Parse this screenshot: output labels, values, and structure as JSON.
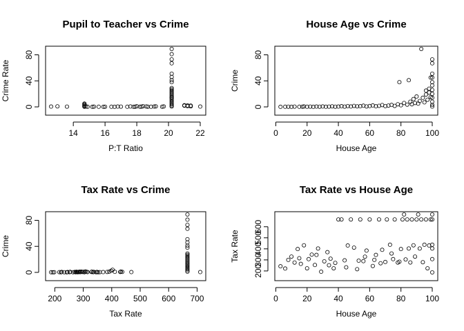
{
  "chart_data": [
    {
      "type": "scatter",
      "title": "Pupil to Teacher vs Crime",
      "xlabel": "P:T Ratio",
      "ylabel": "Crime Rate",
      "xlim": [
        12.6,
        22.0
      ],
      "ylim": [
        0,
        89
      ],
      "xticks": [
        14,
        16,
        18,
        20,
        22
      ],
      "yticks": [
        0,
        40,
        80
      ],
      "points": [
        [
          12.6,
          0.5
        ],
        [
          13.0,
          0.8
        ],
        [
          13.6,
          0.4
        ],
        [
          14.7,
          0.3
        ],
        [
          14.7,
          1.2
        ],
        [
          14.7,
          2.5
        ],
        [
          14.7,
          3.8
        ],
        [
          14.7,
          5.0
        ],
        [
          14.8,
          0.6
        ],
        [
          14.9,
          0.2
        ],
        [
          15.2,
          0.1
        ],
        [
          15.3,
          0.4
        ],
        [
          15.6,
          0.2
        ],
        [
          15.9,
          0.1
        ],
        [
          16.0,
          0.3
        ],
        [
          16.4,
          0.2
        ],
        [
          16.6,
          0.1
        ],
        [
          16.8,
          0.5
        ],
        [
          17.0,
          0.4
        ],
        [
          17.4,
          0.2
        ],
        [
          17.6,
          0.6
        ],
        [
          17.8,
          0.1
        ],
        [
          17.9,
          0.3
        ],
        [
          18.0,
          0.9
        ],
        [
          18.2,
          0.2
        ],
        [
          18.3,
          0.4
        ],
        [
          18.4,
          1.1
        ],
        [
          18.6,
          0.7
        ],
        [
          18.7,
          0.3
        ],
        [
          18.9,
          0.2
        ],
        [
          19.1,
          0.5
        ],
        [
          19.2,
          0.8
        ],
        [
          19.6,
          0.3
        ],
        [
          19.7,
          0.6
        ],
        [
          20.2,
          0.5
        ],
        [
          20.2,
          2
        ],
        [
          20.2,
          4
        ],
        [
          20.2,
          6
        ],
        [
          20.2,
          8
        ],
        [
          20.2,
          10
        ],
        [
          20.2,
          12
        ],
        [
          20.2,
          14
        ],
        [
          20.2,
          15
        ],
        [
          20.2,
          17
        ],
        [
          20.2,
          19
        ],
        [
          20.2,
          21
        ],
        [
          20.2,
          23
        ],
        [
          20.2,
          25
        ],
        [
          20.2,
          27
        ],
        [
          20.2,
          29
        ],
        [
          20.2,
          38
        ],
        [
          20.2,
          41
        ],
        [
          20.2,
          46
        ],
        [
          20.2,
          51
        ],
        [
          20.2,
          67
        ],
        [
          20.2,
          73
        ],
        [
          20.2,
          81
        ],
        [
          20.2,
          89
        ],
        [
          21.0,
          1.8
        ],
        [
          21.0,
          2.5
        ],
        [
          21.2,
          1.0
        ],
        [
          21.2,
          2.2
        ],
        [
          21.4,
          0.8
        ],
        [
          21.4,
          2.0
        ],
        [
          22.0,
          0.5
        ]
      ]
    },
    {
      "type": "scatter",
      "title": "House Age vs Crime",
      "xlabel": "House Age",
      "ylabel": "Crime",
      "xlim": [
        2.9,
        100
      ],
      "ylim": [
        0,
        89
      ],
      "xticks": [
        0,
        20,
        40,
        60,
        80,
        100
      ],
      "yticks": [
        0,
        40,
        80
      ],
      "points": [
        [
          3,
          0.1
        ],
        [
          6,
          0.2
        ],
        [
          8,
          0.3
        ],
        [
          10,
          0.1
        ],
        [
          12,
          0.4
        ],
        [
          15,
          0.2
        ],
        [
          17,
          0.3
        ],
        [
          18,
          0.6
        ],
        [
          20,
          0.2
        ],
        [
          22,
          0.4
        ],
        [
          24,
          0.1
        ],
        [
          26,
          0.5
        ],
        [
          28,
          0.3
        ],
        [
          30,
          0.6
        ],
        [
          32,
          0.2
        ],
        [
          34,
          0.4
        ],
        [
          36,
          0.8
        ],
        [
          38,
          0.3
        ],
        [
          40,
          0.5
        ],
        [
          42,
          1.0
        ],
        [
          44,
          0.4
        ],
        [
          46,
          1.2
        ],
        [
          48,
          0.6
        ],
        [
          50,
          1.5
        ],
        [
          52,
          0.8
        ],
        [
          54,
          1.0
        ],
        [
          56,
          1.8
        ],
        [
          58,
          0.7
        ],
        [
          60,
          1.3
        ],
        [
          62,
          2.2
        ],
        [
          64,
          0.9
        ],
        [
          66,
          1.6
        ],
        [
          68,
          2.8
        ],
        [
          70,
          1.2
        ],
        [
          72,
          2.0
        ],
        [
          74,
          3.0
        ],
        [
          76,
          1.5
        ],
        [
          78,
          4.0
        ],
        [
          79,
          38
        ],
        [
          80,
          2.5
        ],
        [
          82,
          6
        ],
        [
          84,
          3.5
        ],
        [
          85,
          41
        ],
        [
          86,
          8
        ],
        [
          87,
          4
        ],
        [
          88,
          12
        ],
        [
          89,
          6
        ],
        [
          90,
          16
        ],
        [
          91,
          5
        ],
        [
          92,
          9
        ],
        [
          93,
          89
        ],
        [
          94,
          14
        ],
        [
          95,
          7
        ],
        [
          96,
          19
        ],
        [
          96,
          25
        ],
        [
          97,
          11
        ],
        [
          98,
          22
        ],
        [
          98,
          28
        ],
        [
          99,
          15
        ],
        [
          99,
          45
        ],
        [
          100,
          8
        ],
        [
          100,
          14
        ],
        [
          100,
          20
        ],
        [
          100,
          26
        ],
        [
          100,
          33
        ],
        [
          100,
          38
        ],
        [
          100,
          45
        ],
        [
          100,
          51
        ],
        [
          100,
          67
        ],
        [
          100,
          73
        ],
        [
          100,
          0.5
        ],
        [
          100,
          3
        ]
      ]
    },
    {
      "type": "scatter",
      "title": "Tax Rate vs Crime",
      "xlabel": "Tax Rate",
      "ylabel": "Crime",
      "xlim": [
        187,
        711
      ],
      "ylim": [
        0,
        89
      ],
      "xticks": [
        200,
        300,
        400,
        500,
        600,
        700
      ],
      "yticks": [
        0,
        40,
        80
      ],
      "points": [
        [
          187,
          0.2
        ],
        [
          193,
          0.1
        ],
        [
          198,
          0.3
        ],
        [
          216,
          0.4
        ],
        [
          222,
          0.2
        ],
        [
          224,
          0.6
        ],
        [
          233,
          0.3
        ],
        [
          242,
          0.1
        ],
        [
          245,
          0.5
        ],
        [
          252,
          0.4
        ],
        [
          254,
          0.8
        ],
        [
          264,
          0.3
        ],
        [
          270,
          0.6
        ],
        [
          273,
          0.2
        ],
        [
          276,
          0.9
        ],
        [
          277,
          0.4
        ],
        [
          279,
          0.5
        ],
        [
          281,
          0.3
        ],
        [
          284,
          0.7
        ],
        [
          287,
          1.0
        ],
        [
          289,
          0.4
        ],
        [
          293,
          1.2
        ],
        [
          296,
          0.6
        ],
        [
          300,
          0.8
        ],
        [
          304,
          0.3
        ],
        [
          307,
          1.5
        ],
        [
          311,
          0.9
        ],
        [
          315,
          0.5
        ],
        [
          329,
          0.7
        ],
        [
          330,
          1.1
        ],
        [
          335,
          0.4
        ],
        [
          337,
          0.8
        ],
        [
          345,
          0.3
        ],
        [
          348,
          0.6
        ],
        [
          352,
          0.2
        ],
        [
          358,
          0.4
        ],
        [
          370,
          0.5
        ],
        [
          384,
          0.7
        ],
        [
          391,
          1.0
        ],
        [
          398,
          2.5
        ],
        [
          403,
          4.0
        ],
        [
          411,
          0.9
        ],
        [
          430,
          0.6
        ],
        [
          432,
          1.2
        ],
        [
          437,
          0.8
        ],
        [
          469,
          0.5
        ],
        [
          666,
          1
        ],
        [
          666,
          3
        ],
        [
          666,
          5
        ],
        [
          666,
          7
        ],
        [
          666,
          9
        ],
        [
          666,
          11
        ],
        [
          666,
          13
        ],
        [
          666,
          15
        ],
        [
          666,
          17
        ],
        [
          666,
          19
        ],
        [
          666,
          21
        ],
        [
          666,
          23
        ],
        [
          666,
          25
        ],
        [
          666,
          27
        ],
        [
          666,
          29
        ],
        [
          666,
          38
        ],
        [
          666,
          41
        ],
        [
          666,
          46
        ],
        [
          666,
          51
        ],
        [
          666,
          67
        ],
        [
          666,
          73
        ],
        [
          666,
          81
        ],
        [
          666,
          89
        ],
        [
          711,
          0.5
        ]
      ]
    },
    {
      "type": "scatter",
      "title": "Tax Rate vs House Age",
      "xlabel": "House Age",
      "ylabel": "Tax Rate",
      "xlim": [
        2.9,
        100
      ],
      "ylim": [
        187,
        711
      ],
      "xticks": [
        0,
        20,
        40,
        60,
        80,
        100
      ],
      "yticks": [
        200,
        300,
        400,
        500,
        600
      ],
      "points": [
        [
          3,
          242
        ],
        [
          6,
          222
        ],
        [
          8,
          300
        ],
        [
          10,
          330
        ],
        [
          12,
          276
        ],
        [
          14,
          398
        ],
        [
          16,
          264
        ],
        [
          18,
          432
        ],
        [
          20,
          224
        ],
        [
          21,
          307
        ],
        [
          23,
          348
        ],
        [
          25,
          254
        ],
        [
          27,
          403
        ],
        [
          29,
          193
        ],
        [
          31,
          287
        ],
        [
          33,
          370
        ],
        [
          35,
          311
        ],
        [
          37,
          224
        ],
        [
          38,
          273
        ],
        [
          40,
          666
        ],
        [
          42,
          666
        ],
        [
          44,
          296
        ],
        [
          46,
          430
        ],
        [
          48,
          666
        ],
        [
          50,
          411
        ],
        [
          52,
          216
        ],
        [
          54,
          666
        ],
        [
          56,
          289
        ],
        [
          58,
          384
        ],
        [
          60,
          666
        ],
        [
          62,
          245
        ],
        [
          64,
          345
        ],
        [
          66,
          666
        ],
        [
          68,
          391
        ],
        [
          70,
          281
        ],
        [
          71,
          666
        ],
        [
          73,
          437
        ],
        [
          75,
          307
        ],
        [
          76,
          666
        ],
        [
          78,
          276
        ],
        [
          80,
          398
        ],
        [
          81,
          666
        ],
        [
          82,
          711
        ],
        [
          83,
          304
        ],
        [
          84,
          666
        ],
        [
          85,
          403
        ],
        [
          86,
          277
        ],
        [
          87,
          666
        ],
        [
          88,
          432
        ],
        [
          89,
          330
        ],
        [
          90,
          666
        ],
        [
          91,
          711
        ],
        [
          92,
          403
        ],
        [
          93,
          666
        ],
        [
          94,
          279
        ],
        [
          95,
          437
        ],
        [
          96,
          666
        ],
        [
          97,
          224
        ],
        [
          98,
          430
        ],
        [
          99,
          666
        ],
        [
          100,
          666
        ],
        [
          100,
          711
        ],
        [
          100,
          437
        ],
        [
          100,
          403
        ],
        [
          100,
          307
        ],
        [
          100,
          187
        ],
        [
          15,
          315
        ],
        [
          26,
          345
        ],
        [
          34,
          252
        ],
        [
          45,
          233
        ],
        [
          53,
          293
        ],
        [
          57,
          329
        ],
        [
          63,
          300
        ],
        [
          67,
          270
        ],
        [
          74,
          358
        ],
        [
          79,
          284
        ]
      ]
    }
  ]
}
